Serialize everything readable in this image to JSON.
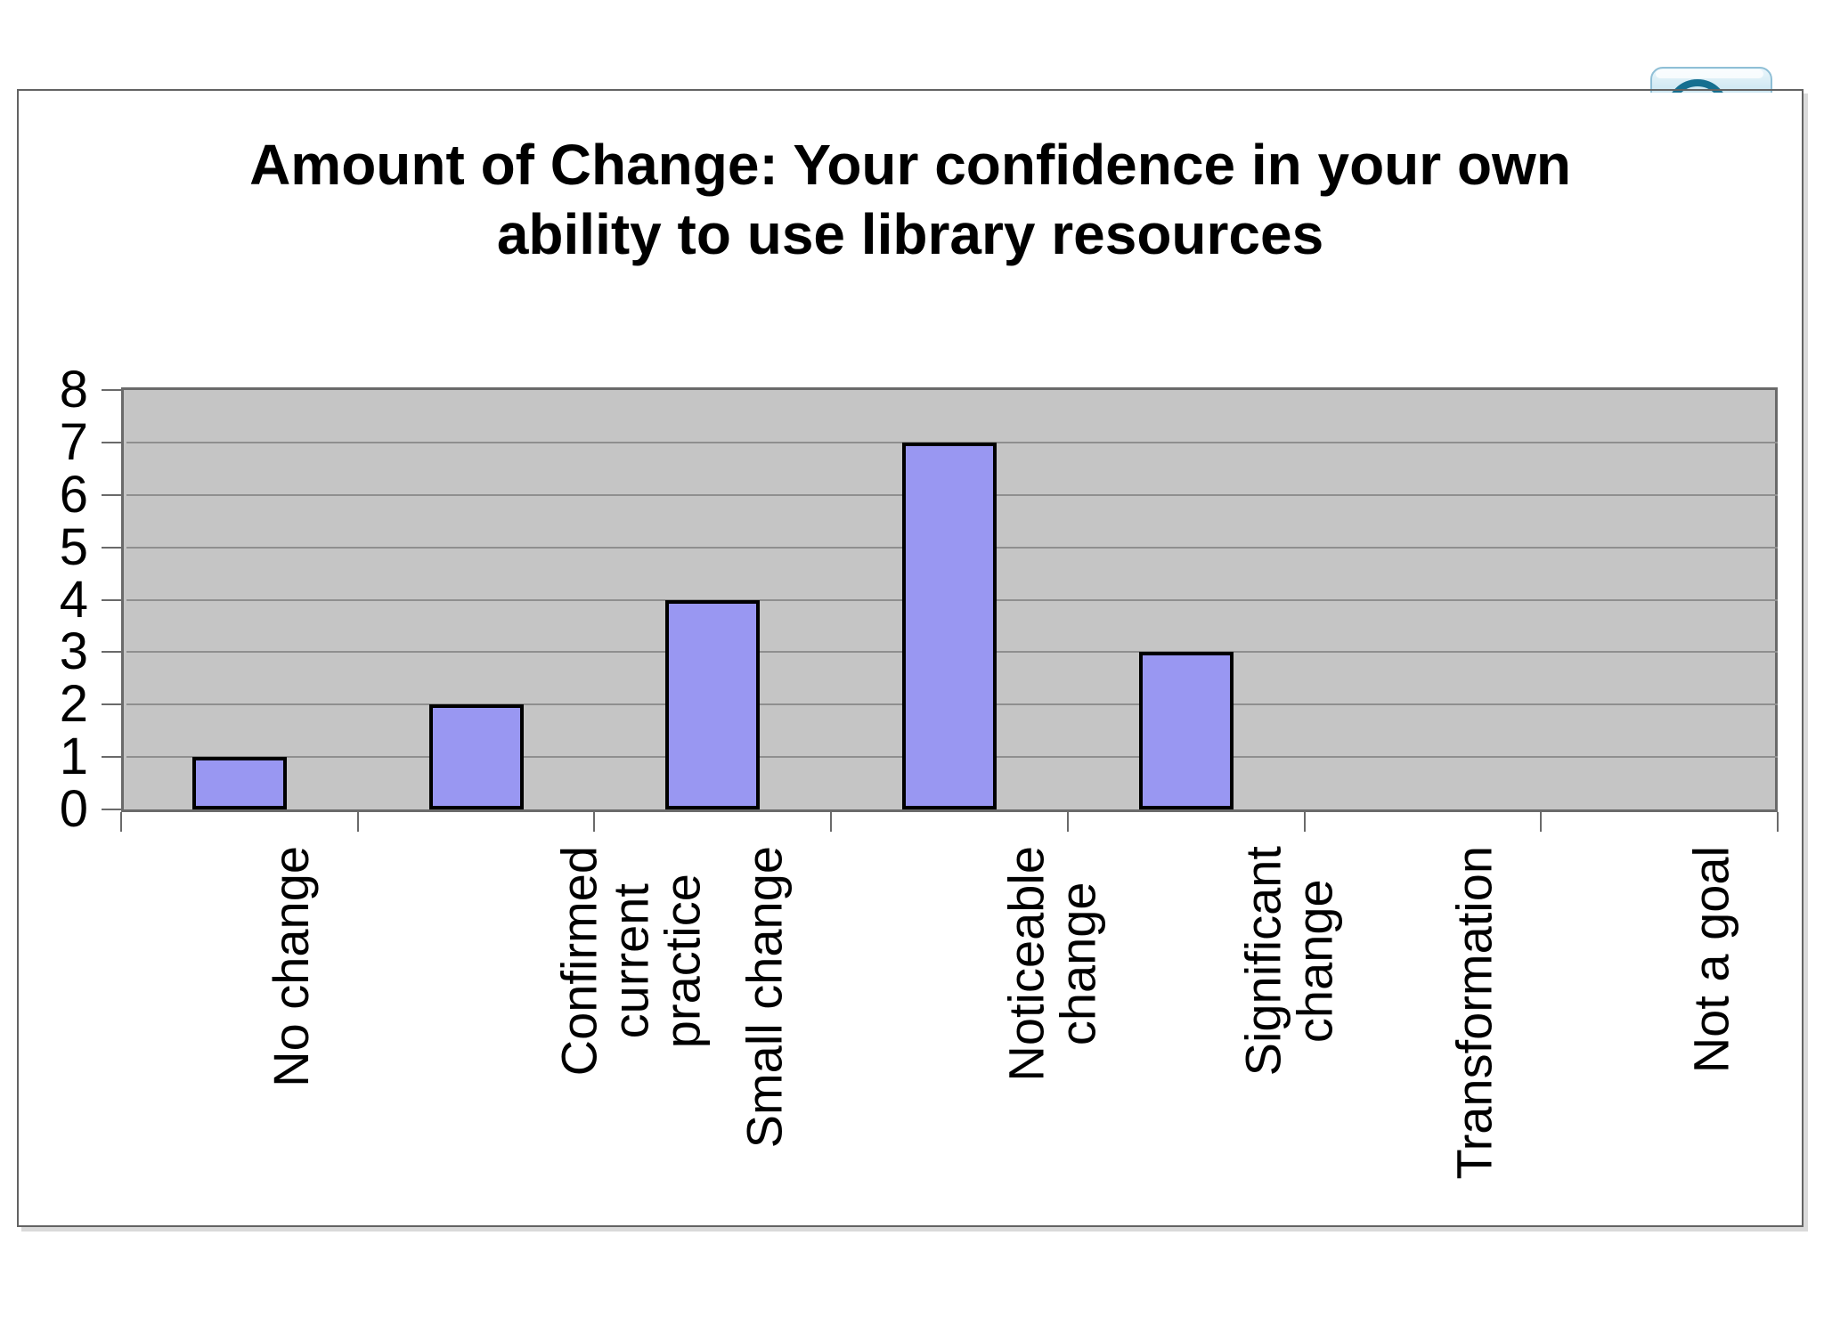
{
  "page": {
    "background": "#FFFFFF"
  },
  "embedded_icon": {
    "description": "glossy-blue-button-partially-hidden-behind-chart",
    "body_top_color": "#EAF6FB",
    "body_bottom_color": "#AFD6E6",
    "border_color": "#8FBFD6",
    "ring_color": "#156F90"
  },
  "chart_data": {
    "type": "bar",
    "title": "Amount of Change: Your confidence in your own\nability to use library resources",
    "categories": [
      "No change",
      "Confirmed\ncurrent\npractice",
      "Small change",
      "Noticeable\nchange",
      "Significant\nchange",
      "Transformation",
      "Not a goal"
    ],
    "values": [
      1,
      2,
      4,
      7,
      3,
      0,
      0
    ],
    "xlabel": "",
    "ylabel": "",
    "ylim": [
      0,
      8
    ],
    "yticks": [
      0,
      1,
      2,
      3,
      4,
      5,
      6,
      7,
      8
    ],
    "grid": true,
    "legend_position": "none",
    "colors": {
      "bar_fill": "#9997F2",
      "bar_outline": "#000000",
      "plot_background": "#C5C5C5",
      "gridline": "#8F8F8F",
      "plot_border": "#6A6A6A",
      "frame_border": "#636363",
      "text": "#000000"
    }
  }
}
